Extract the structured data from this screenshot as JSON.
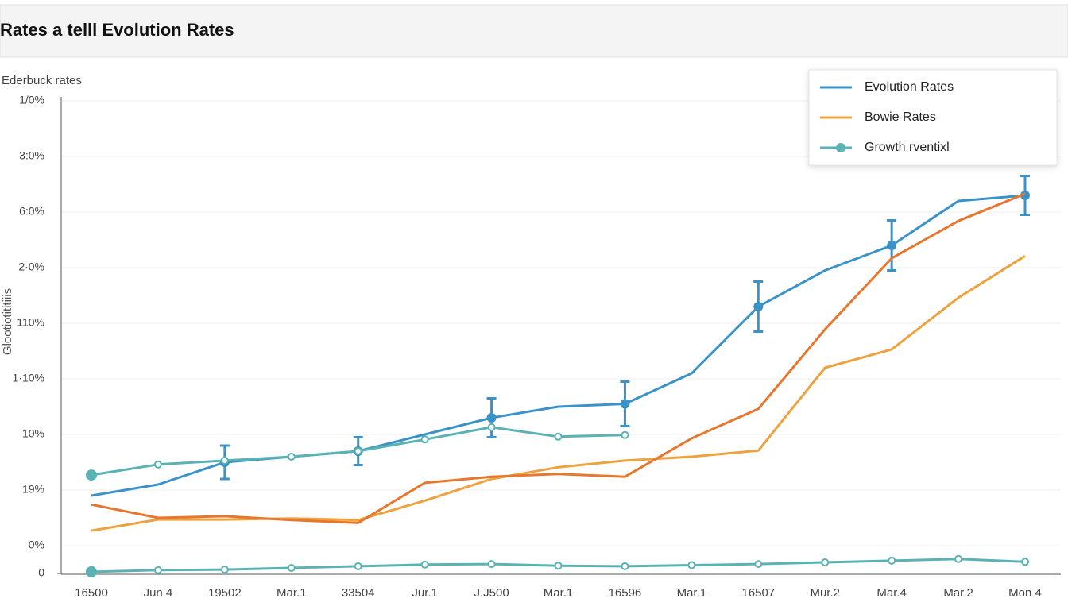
{
  "chart_data": {
    "type": "line",
    "title": "Rates a telll Evolution Rates",
    "subtitle": "Ederbuck rates",
    "ylabel": "Glootiotititiiis",
    "categories": [
      "16500",
      "Jun 4",
      "19502",
      "Mar.1",
      "33504",
      "Jur.1",
      "J.J500",
      "Mar.1",
      "16596",
      "Mar.1",
      "16507",
      "Mur.2",
      "Mar.4",
      "Mar.2",
      "Mon 4"
    ],
    "ylim": [
      0,
      8.5
    ],
    "yticks": [
      0,
      {
        "value": 0.5,
        "label": "0%"
      },
      {
        "value": 1.5,
        "label": "19%"
      },
      {
        "value": 2.5,
        "label": "10%"
      },
      {
        "value": 3.5,
        "label": "1·10%"
      },
      {
        "value": 4.5,
        "label": "110%"
      },
      {
        "value": 5.5,
        "label": "2·0%"
      },
      {
        "value": 6.5,
        "label": "6:0%"
      },
      {
        "value": 7.5,
        "label": "3:0%"
      },
      {
        "value": 8.5,
        "label": "1/0%"
      }
    ],
    "grid": true,
    "legend": "upper right",
    "series": [
      {
        "name": "Evolution Rates",
        "color": "#3a93c8",
        "values": [
          1.4,
          1.6,
          2.0,
          2.1,
          2.2,
          2.5,
          2.8,
          3.0,
          3.05,
          3.6,
          4.8,
          5.45,
          5.9,
          6.7,
          6.8
        ],
        "errors": [
          null,
          null,
          0.3,
          null,
          0.25,
          null,
          0.35,
          null,
          0.4,
          null,
          0.45,
          null,
          0.45,
          null,
          0.35
        ]
      },
      {
        "name": "Bowie Rates",
        "color": "#eea23e",
        "values": [
          0.77,
          0.97,
          0.97,
          0.99,
          0.96,
          1.31,
          1.7,
          1.91,
          2.03,
          2.1,
          2.21,
          3.7,
          4.03,
          4.96,
          5.71
        ]
      },
      {
        "name": "Growth rventixl",
        "color": "#5ab2b4",
        "marker": true,
        "values": [
          1.77,
          1.96,
          2.03,
          2.1,
          2.2,
          2.41,
          2.63,
          2.46,
          2.49,
          null,
          null,
          null,
          null,
          null,
          null
        ]
      },
      {
        "color": "#e8772e",
        "values": [
          1.24,
          1.0,
          1.03,
          0.96,
          0.91,
          1.63,
          1.74,
          1.79,
          1.74,
          2.43,
          2.96,
          4.39,
          5.67,
          6.34,
          6.83
        ]
      },
      {
        "color": "#5ab2b4",
        "marker": true,
        "values": [
          0.03,
          0.06,
          0.07,
          0.1,
          0.13,
          0.16,
          0.17,
          0.14,
          0.13,
          0.15,
          0.17,
          0.2,
          0.23,
          0.26,
          0.21
        ]
      }
    ]
  }
}
